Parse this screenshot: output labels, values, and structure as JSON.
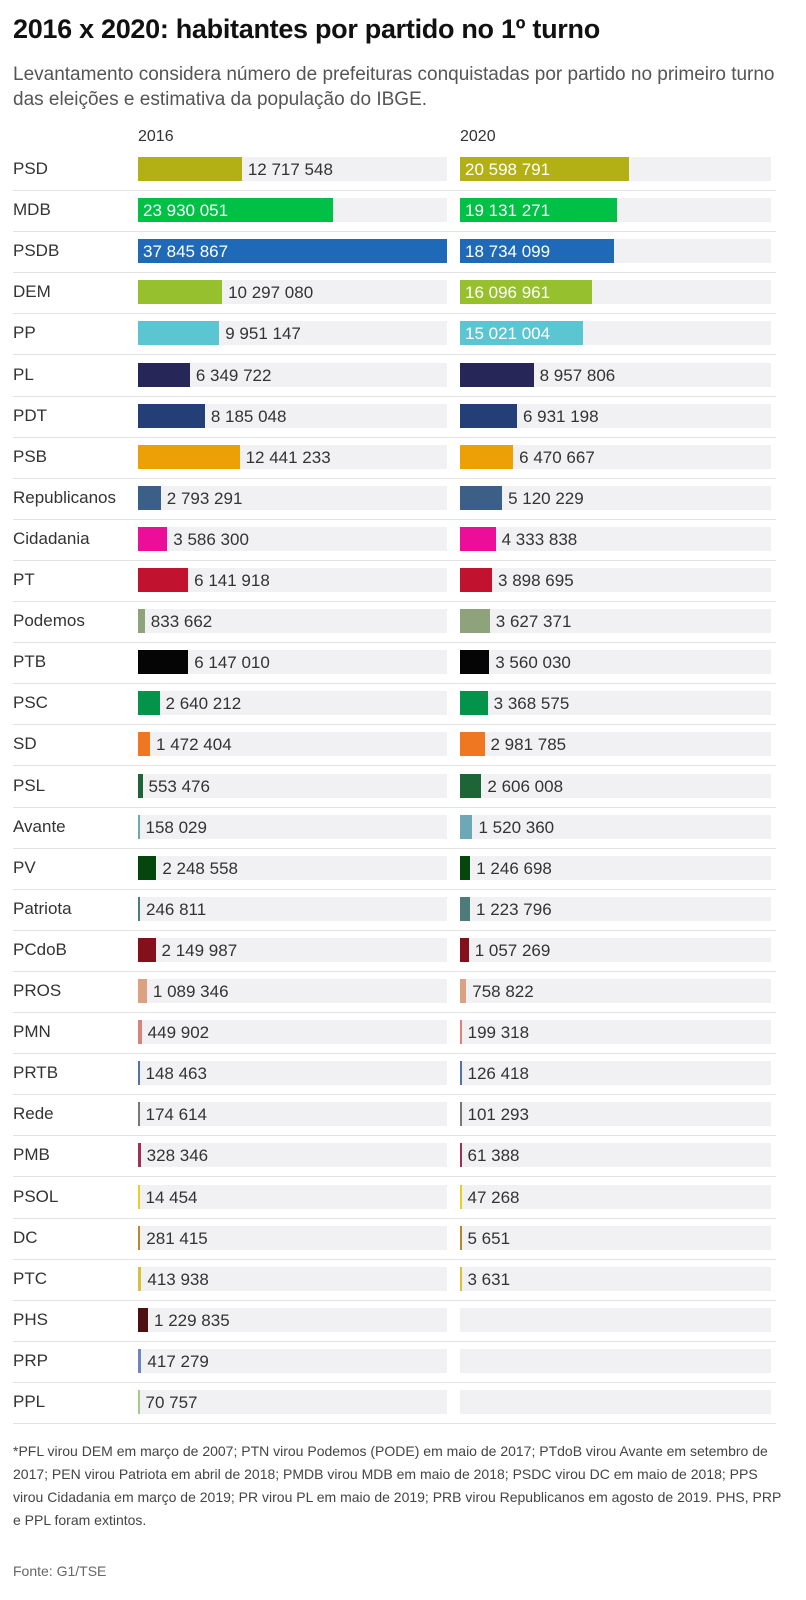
{
  "header": {
    "title": "2016 x 2020: habitantes por partido no 1º turno",
    "subtitle": "Levantamento considera número de prefeituras conquistadas por partido no primeiro turno das eleições e estimativa da população do IBGE."
  },
  "chart_data": {
    "type": "bar",
    "orientation": "horizontal",
    "columns": [
      "2016",
      "2020"
    ],
    "rows": [
      {
        "party": "PSD",
        "color": "#b2b014",
        "v2016": 12717548,
        "l2016": "12 717 548",
        "v2020": 20598791,
        "l2020": "20 598 791"
      },
      {
        "party": "MDB",
        "color": "#00c046",
        "v2016": 23930051,
        "l2016": "23 930 051",
        "v2020": 19131271,
        "l2020": "19 131 271"
      },
      {
        "party": "PSDB",
        "color": "#1f6ab8",
        "v2016": 37845867,
        "l2016": "37 845 867",
        "v2020": 18734099,
        "l2020": "18 734 099"
      },
      {
        "party": "DEM",
        "color": "#96c02e",
        "v2016": 10297080,
        "l2016": "10 297 080",
        "v2020": 16096961,
        "l2020": "16 096 961"
      },
      {
        "party": "PP",
        "color": "#5bc6d2",
        "v2016": 9951147,
        "l2016": "9 951 147",
        "v2020": 15021004,
        "l2020": "15 021 004"
      },
      {
        "party": "PL",
        "color": "#272658",
        "v2016": 6349722,
        "l2016": "6 349 722",
        "v2020": 8957806,
        "l2020": "8 957 806"
      },
      {
        "party": "PDT",
        "color": "#243f78",
        "v2016": 8185048,
        "l2016": "8 185 048",
        "v2020": 6931198,
        "l2020": "6 931 198"
      },
      {
        "party": "PSB",
        "color": "#eca006",
        "v2016": 12441233,
        "l2016": "12 441 233",
        "v2020": 6470667,
        "l2020": "6 470 667"
      },
      {
        "party": "Republicanos",
        "color": "#3b5f86",
        "v2016": 2793291,
        "l2016": "2 793 291",
        "v2020": 5120229,
        "l2020": "5 120 229"
      },
      {
        "party": "Cidadania",
        "color": "#ec0e98",
        "v2016": 3586300,
        "l2016": "3 586 300",
        "v2020": 4333838,
        "l2020": "4 333 838"
      },
      {
        "party": "PT",
        "color": "#c1132f",
        "v2016": 6141918,
        "l2016": "6 141 918",
        "v2020": 3898695,
        "l2020": "3 898 695"
      },
      {
        "party": "Podemos",
        "color": "#8ea37b",
        "v2016": 833662,
        "l2016": "833 662",
        "v2020": 3627371,
        "l2020": "3 627 371"
      },
      {
        "party": "PTB",
        "color": "#050505",
        "v2016": 6147010,
        "l2016": "6 147 010",
        "v2020": 3560030,
        "l2020": "3 560 030"
      },
      {
        "party": "PSC",
        "color": "#04934a",
        "v2016": 2640212,
        "l2016": "2 640 212",
        "v2020": 3368575,
        "l2020": "3 368 575"
      },
      {
        "party": "SD",
        "color": "#f07722",
        "v2016": 1472404,
        "l2016": "1 472 404",
        "v2020": 2981785,
        "l2020": "2 981 785"
      },
      {
        "party": "PSL",
        "color": "#1d6437",
        "v2016": 553476,
        "l2016": "553 476",
        "v2020": 2606008,
        "l2020": "2 606 008"
      },
      {
        "party": "Avante",
        "color": "#6ea8b6",
        "v2016": 158029,
        "l2016": "158 029",
        "v2020": 1520360,
        "l2020": "1 520 360"
      },
      {
        "party": "PV",
        "color": "#05460f",
        "v2016": 2248558,
        "l2016": "2 248 558",
        "v2020": 1246698,
        "l2020": "1 246 698"
      },
      {
        "party": "Patriota",
        "color": "#4c7b79",
        "v2016": 246811,
        "l2016": "246 811",
        "v2020": 1223796,
        "l2020": "1 223 796"
      },
      {
        "party": "PCdoB",
        "color": "#84101c",
        "v2016": 2149987,
        "l2016": "2 149 987",
        "v2020": 1057269,
        "l2020": "1 057 269"
      },
      {
        "party": "PROS",
        "color": "#dba282",
        "v2016": 1089346,
        "l2016": "1 089 346",
        "v2020": 758822,
        "l2020": "758 822"
      },
      {
        "party": "PMN",
        "color": "#d8847e",
        "v2016": 449902,
        "l2016": "449 902",
        "v2020": 199318,
        "l2020": "199 318"
      },
      {
        "party": "PRTB",
        "color": "#5572a4",
        "v2016": 148463,
        "l2016": "148 463",
        "v2020": 126418,
        "l2020": "126 418"
      },
      {
        "party": "Rede",
        "color": "#777777",
        "v2016": 174614,
        "l2016": "174 614",
        "v2020": 101293,
        "l2020": "101 293"
      },
      {
        "party": "PMB",
        "color": "#9a3252",
        "v2016": 328346,
        "l2016": "328 346",
        "v2020": 61388,
        "l2020": "61 388"
      },
      {
        "party": "PSOL",
        "color": "#e1d31f",
        "v2016": 14454,
        "l2016": "14 454",
        "v2020": 47268,
        "l2020": "47 268"
      },
      {
        "party": "DC",
        "color": "#b58a2a",
        "v2016": 281415,
        "l2016": "281 415",
        "v2020": 5651,
        "l2020": "5 651"
      },
      {
        "party": "PTC",
        "color": "#d6c33a",
        "v2016": 413938,
        "l2016": "413 938",
        "v2020": 3631,
        "l2020": "3 631"
      },
      {
        "party": "PHS",
        "color": "#4e1010",
        "v2016": 1229835,
        "l2016": "1 229 835",
        "v2020": null,
        "l2020": ""
      },
      {
        "party": "PRP",
        "color": "#6e86be",
        "v2016": 417279,
        "l2016": "417 279",
        "v2020": null,
        "l2020": ""
      },
      {
        "party": "PPL",
        "color": "#a9c98c",
        "v2016": 70757,
        "l2016": "70 757",
        "v2020": null,
        "l2020": ""
      }
    ],
    "xlim": [
      0,
      37845867
    ]
  },
  "footnote": "*PFL virou DEM em março de 2007; PTN virou Podemos (PODE) em maio de 2017; PTdoB virou Avante em setembro de 2017; PEN virou Patriota em abril de 2018; PMDB virou MDB em maio de 2018; PSDC virou DC em maio de 2018; PPS virou Cidadania em março de 2019; PR virou PL em maio de 2019; PRB virou Republicanos em agosto de 2019. PHS, PRP e PPL foram extintos.",
  "source": "Fonte: G1/TSE"
}
